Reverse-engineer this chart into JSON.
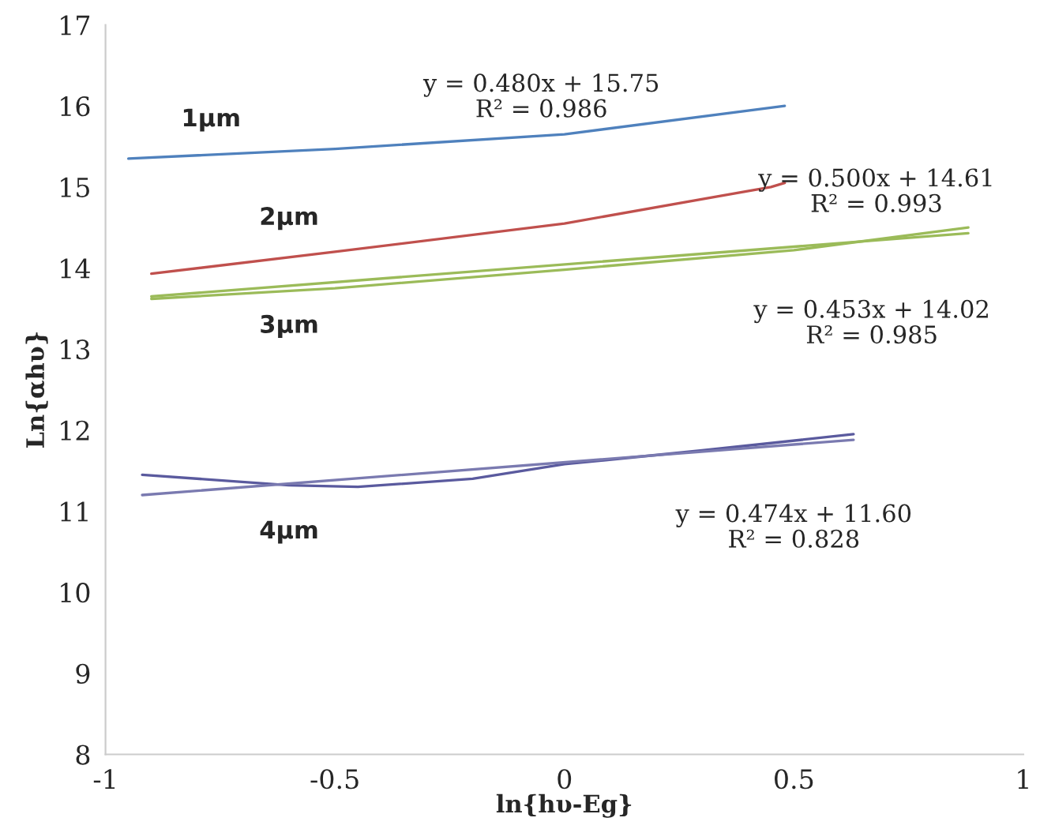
{
  "chart_data": {
    "type": "line",
    "xlabel": "ln{hυ-Eg}",
    "ylabel": "Ln{αhυ}",
    "xlim": [
      -1,
      1
    ],
    "ylim": [
      8,
      17
    ],
    "xticks": [
      -1,
      -0.5,
      0,
      0.5,
      1
    ],
    "yticks": [
      8,
      9,
      10,
      11,
      12,
      13,
      14,
      15,
      16,
      17
    ],
    "grid": false,
    "legend": false,
    "marker": "none",
    "line_style": "solid",
    "series": [
      {
        "name": "1µm",
        "color": "#4f81bd",
        "x": [
          -0.95,
          -0.5,
          0,
          0.48
        ],
        "values": [
          15.35,
          15.47,
          15.65,
          16.0
        ]
      },
      {
        "name": "2µm",
        "color": "#c0504d",
        "x": [
          -0.9,
          -0.5,
          0,
          0.45,
          0.48
        ],
        "values": [
          13.93,
          14.2,
          14.55,
          15.0,
          15.05
        ]
      },
      {
        "name": "3µm",
        "color": "#9bbb59",
        "x": [
          -0.9,
          -0.5,
          0,
          0.5,
          0.88
        ],
        "values": [
          13.62,
          13.75,
          13.98,
          14.22,
          14.5
        ]
      },
      {
        "color": "#9bbb59",
        "x": [
          -0.9,
          0.88
        ],
        "values": [
          13.65,
          14.43
        ]
      },
      {
        "name": "4µm",
        "color": "#5a5a9e",
        "x": [
          -0.92,
          -0.6,
          -0.45,
          -0.2,
          0,
          0.3,
          0.63
        ],
        "values": [
          11.45,
          11.32,
          11.3,
          11.4,
          11.58,
          11.75,
          11.95
        ]
      },
      {
        "color": "#7a7ab0",
        "x": [
          -0.92,
          0.63
        ],
        "values": [
          11.2,
          11.88
        ]
      }
    ],
    "annotations": [
      "y = 0.480x + 15.75\nR² = 0.986",
      "y = 0.500x + 14.61\nR² = 0.993",
      "y = 0.453x + 14.02\nR² = 0.985",
      "y = 0.474x + 11.60\nR² = 0.828"
    ]
  }
}
